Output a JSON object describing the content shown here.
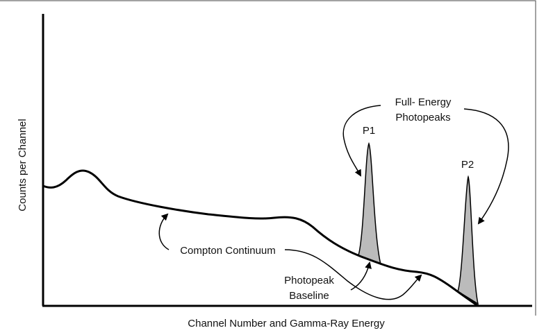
{
  "axes": {
    "y_label": "Counts per Channel",
    "x_label": "Channel Number and Gamma-Ray Energy"
  },
  "labels": {
    "full_energy": [
      "Full- Energy",
      "Photopeaks"
    ],
    "p1": "P1",
    "p2": "P2",
    "compton": "Compton Continuum",
    "baseline": [
      "Photopeak",
      "Baseline"
    ]
  }
}
